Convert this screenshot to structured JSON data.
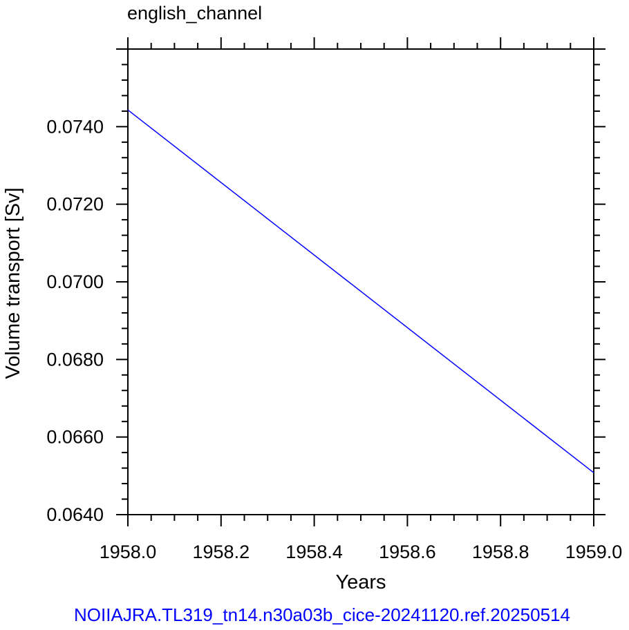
{
  "chart_data": {
    "type": "line",
    "title": "english_channel",
    "xlabel": "Years",
    "ylabel": "Volume transport [Sv]",
    "xlim": [
      1958.0,
      1959.0
    ],
    "ylim": [
      0.064,
      0.076
    ],
    "x_ticks": [
      "1958.0",
      "1958.2",
      "1958.4",
      "1958.6",
      "1958.8",
      "1959.0"
    ],
    "y_ticks": [
      "0.0640",
      "0.0660",
      "0.0680",
      "0.0700",
      "0.0720",
      "0.0740"
    ],
    "grid": false,
    "series": [
      {
        "color": "#0000ff",
        "x": [
          1958.0,
          1959.0
        ],
        "y": [
          0.07443,
          0.06508
        ]
      }
    ],
    "footer": "NOIIAJRA.TL319_tn14.n30a03b_cice-20241120.ref.20250514",
    "footer_color": "#0000ff"
  }
}
